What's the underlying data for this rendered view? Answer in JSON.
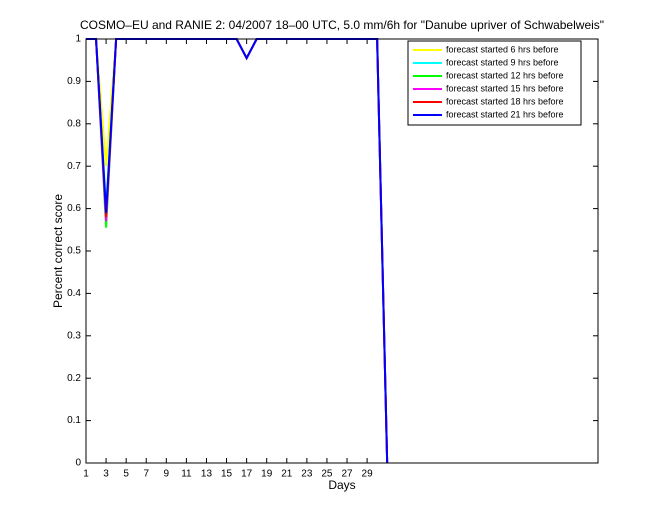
{
  "chart_data": {
    "type": "line",
    "title": "COSMO–EU and RANIE 2: 04/2007 18–00 UTC, 5.0 mm/6h for \"Danube upriver of Schwabelweis\"",
    "x_label": "Days",
    "y_label": "Percent correct score",
    "x": [
      1,
      2,
      3,
      4,
      5,
      6,
      7,
      8,
      9,
      10,
      11,
      12,
      13,
      14,
      15,
      16,
      17,
      18,
      19,
      20,
      21,
      22,
      23,
      24,
      25,
      26,
      27,
      28,
      29,
      30,
      31
    ],
    "series": [
      {
        "name": "forecast started 6 hrs before",
        "color": "#ffff00",
        "values": [
          1,
          1,
          0.7,
          1,
          1,
          1,
          1,
          1,
          1,
          1,
          1,
          1,
          1,
          1,
          1,
          1,
          0.955,
          1,
          1,
          1,
          1,
          1,
          1,
          1,
          1,
          1,
          1,
          1,
          1,
          1,
          0
        ]
      },
      {
        "name": "forecast started 9 hrs before",
        "color": "#00ffff",
        "values": [
          1,
          1,
          0.6,
          1,
          1,
          1,
          1,
          1,
          1,
          1,
          1,
          1,
          1,
          1,
          1,
          1,
          0.955,
          1,
          1,
          1,
          1,
          1,
          1,
          1,
          1,
          1,
          1,
          1,
          1,
          1,
          0
        ]
      },
      {
        "name": "forecast started 12 hrs before",
        "color": "#00ff00",
        "values": [
          1,
          1,
          0.555,
          1,
          1,
          1,
          1,
          1,
          1,
          1,
          1,
          1,
          1,
          1,
          1,
          1,
          0.955,
          1,
          1,
          1,
          1,
          1,
          1,
          1,
          1,
          1,
          1,
          1,
          1,
          1,
          0
        ]
      },
      {
        "name": "forecast started 15 hrs before",
        "color": "#ff00ff",
        "values": [
          1,
          1,
          0.57,
          1,
          1,
          1,
          1,
          1,
          1,
          1,
          1,
          1,
          1,
          1,
          1,
          1,
          0.955,
          1,
          1,
          1,
          1,
          1,
          1,
          1,
          1,
          1,
          1,
          1,
          1,
          1,
          0
        ]
      },
      {
        "name": "forecast started 18 hrs before",
        "color": "#ff0000",
        "values": [
          1,
          1,
          0.58,
          1,
          1,
          1,
          1,
          1,
          1,
          1,
          1,
          1,
          1,
          1,
          1,
          1,
          0.955,
          1,
          1,
          1,
          1,
          1,
          1,
          1,
          1,
          1,
          1,
          1,
          1,
          1,
          0
        ]
      },
      {
        "name": "forecast started 21 hrs before",
        "color": "#0000ff",
        "values": [
          1,
          1,
          0.59,
          1,
          1,
          1,
          1,
          1,
          1,
          1,
          1,
          1,
          1,
          1,
          1,
          1,
          0.955,
          1,
          1,
          1,
          1,
          1,
          1,
          1,
          1,
          1,
          1,
          1,
          1,
          1,
          0
        ]
      }
    ],
    "xlim": [
      1,
      52
    ],
    "ylim": [
      0,
      1
    ],
    "xticks": [
      1,
      3,
      5,
      7,
      9,
      11,
      13,
      15,
      17,
      19,
      21,
      23,
      25,
      27,
      29
    ],
    "yticks": [
      0,
      0.1,
      0.2,
      0.3,
      0.4,
      0.5,
      0.6,
      0.7,
      0.8,
      0.9,
      1
    ],
    "legend": "top-right"
  }
}
